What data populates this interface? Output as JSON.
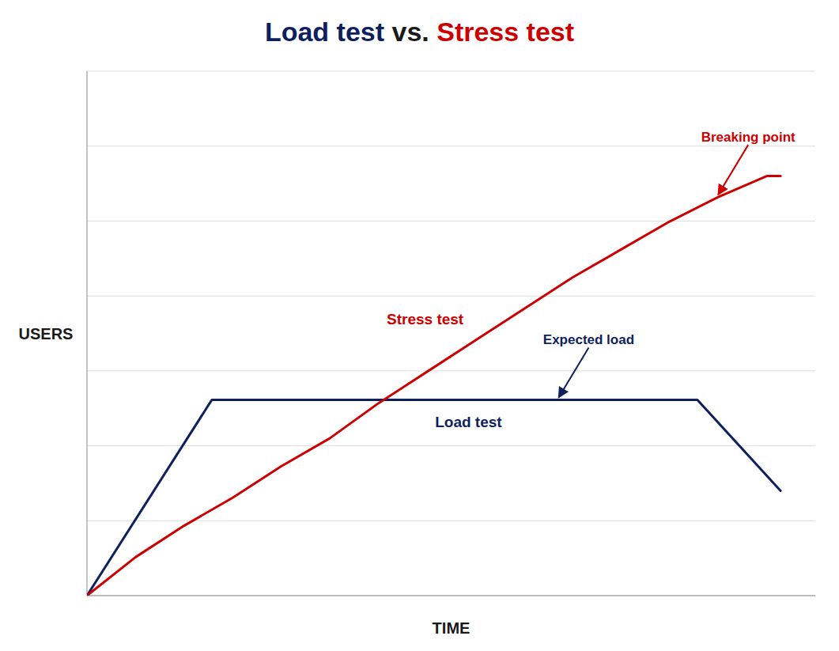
{
  "chart_data": {
    "type": "line",
    "title": "Load test vs. Stress test",
    "xlabel": "TIME",
    "ylabel": "USERS",
    "series": [
      {
        "name": "Load test",
        "color": "#0d1f5c",
        "x": [
          0.0,
          1.8,
          5.5,
          8.8,
          10.0
        ],
        "values": [
          0.0,
          2.8,
          2.8,
          2.8,
          1.5
        ]
      },
      {
        "name": "Stress test",
        "color": "#cc0000",
        "x": [
          0.0,
          0.7,
          0.7,
          1.4,
          1.4,
          2.1,
          2.1,
          2.8,
          2.8,
          3.5,
          3.5,
          4.2,
          4.2,
          4.9,
          4.9,
          5.6,
          5.6,
          6.3,
          6.3,
          7.0,
          7.0,
          7.7,
          7.7,
          8.4,
          8.4,
          9.1,
          9.1,
          9.8,
          9.8,
          10.0
        ],
        "values": [
          0.0,
          0.55,
          0.55,
          1.0,
          1.0,
          1.4,
          1.4,
          1.85,
          1.85,
          2.25,
          2.25,
          2.75,
          2.75,
          3.2,
          3.2,
          3.65,
          3.65,
          4.1,
          4.1,
          4.55,
          4.55,
          4.95,
          4.95,
          5.35,
          5.35,
          5.7,
          5.7,
          6.0,
          6.0,
          6.0
        ]
      }
    ],
    "annotations": [
      {
        "text": "Breaking point",
        "x": 9.1,
        "y": 5.7,
        "color": "#cc0000"
      },
      {
        "text": "Expected load",
        "x": 6.8,
        "y": 2.8,
        "color": "#0d1f5c"
      }
    ],
    "xlim": [
      0.0,
      10.5
    ],
    "ylim": [
      0.0,
      7.5
    ],
    "yticks": [
      0.0,
      1.0714285714285714,
      2.142857142857143,
      3.2142857142857144,
      4.285714285714286,
      5.357142857142858,
      6.428571428571429,
      7.5
    ],
    "grid": true,
    "tick_labels": false
  }
}
